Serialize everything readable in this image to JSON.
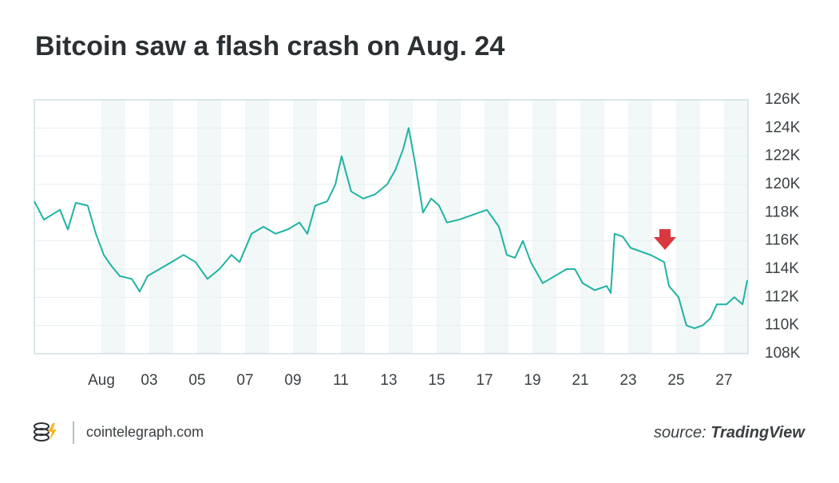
{
  "chart_data": {
    "type": "line",
    "title": "Bitcoin saw a flash crash on Aug. 24",
    "color": "#1fb3a3",
    "grid": true,
    "x": [
      -1.8,
      -1.4,
      -0.73,
      -0.4,
      -0.07,
      0.43,
      0.77,
      1.1,
      1.43,
      1.77,
      2.27,
      2.6,
      2.93,
      3.43,
      3.93,
      4.43,
      4.93,
      5.43,
      5.93,
      6.43,
      6.77,
      7.27,
      7.77,
      8.27,
      8.77,
      9.27,
      9.6,
      9.93,
      10.43,
      10.77,
      11.03,
      11.43,
      11.93,
      12.43,
      12.93,
      13.27,
      13.6,
      13.83,
      14.1,
      14.43,
      14.77,
      15.1,
      15.43,
      15.93,
      16.43,
      17.1,
      17.6,
      17.93,
      18.27,
      18.6,
      18.93,
      19.43,
      19.93,
      20.43,
      20.77,
      21.1,
      21.6,
      22.1,
      22.27,
      22.43,
      22.77,
      23.1,
      23.43,
      23.93,
      24.27,
      24.5,
      24.7,
      25.1,
      25.43,
      25.77,
      26.1,
      26.43,
      26.7,
      27.1,
      27.43,
      27.77,
      27.97
    ],
    "values": [
      118800,
      117500,
      118200,
      116800,
      118700,
      118500,
      116500,
      115000,
      114200,
      113500,
      113300,
      112400,
      113500,
      114000,
      114500,
      115000,
      114500,
      113300,
      114000,
      115000,
      114500,
      116500,
      117000,
      116500,
      116800,
      117300,
      116500,
      118500,
      118800,
      120000,
      122000,
      119500,
      119000,
      119300,
      120000,
      121000,
      122500,
      124000,
      121500,
      118000,
      119000,
      118500,
      117300,
      117500,
      117800,
      118200,
      117000,
      115000,
      114800,
      116000,
      114500,
      113000,
      113500,
      114000,
      114000,
      113000,
      112500,
      112800,
      112300,
      116500,
      116300,
      115500,
      115300,
      115000,
      114700,
      114500,
      112800,
      112000,
      110000,
      109800,
      110000,
      110500,
      111500,
      111500,
      112000,
      111500,
      113200
    ],
    "xlim": [
      -1.8,
      28
    ],
    "xticks": [
      {
        "value": 1,
        "label": "Aug"
      },
      {
        "value": 3,
        "label": "03"
      },
      {
        "value": 5,
        "label": "05"
      },
      {
        "value": 7,
        "label": "07"
      },
      {
        "value": 9,
        "label": "09"
      },
      {
        "value": 11,
        "label": "11"
      },
      {
        "value": 13,
        "label": "13"
      },
      {
        "value": 15,
        "label": "15"
      },
      {
        "value": 17,
        "label": "17"
      },
      {
        "value": 19,
        "label": "19"
      },
      {
        "value": 21,
        "label": "21"
      },
      {
        "value": 23,
        "label": "23"
      },
      {
        "value": 25,
        "label": "25"
      },
      {
        "value": 27,
        "label": "27"
      }
    ],
    "ylim": [
      108000,
      126000
    ],
    "yticks": [
      {
        "value": 108000,
        "label": "108K"
      },
      {
        "value": 110000,
        "label": "110K"
      },
      {
        "value": 112000,
        "label": "112K"
      },
      {
        "value": 114000,
        "label": "114K"
      },
      {
        "value": 116000,
        "label": "116K"
      },
      {
        "value": 118000,
        "label": "118K"
      },
      {
        "value": 120000,
        "label": "120K"
      },
      {
        "value": 122000,
        "label": "122K"
      },
      {
        "value": 124000,
        "label": "124K"
      },
      {
        "value": 126000,
        "label": "126K"
      }
    ]
  },
  "footer": {
    "site": "cointelegraph.com",
    "source_label": "source:",
    "source_name": "TradingView"
  }
}
